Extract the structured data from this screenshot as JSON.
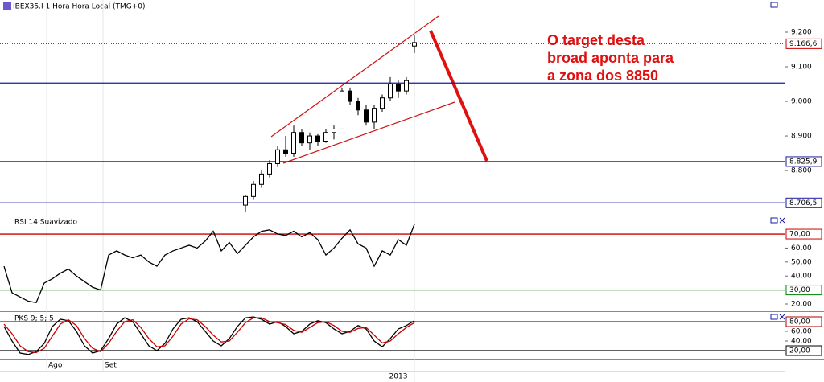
{
  "chart_data": [
    {
      "type": "candlestick",
      "title": "IBEX35.I 1 Hora Hora Local (TMG+0)",
      "annotation": [
        "O target desta",
        "broad aponta para",
        "a zona dos 8850"
      ],
      "categories": [
        null,
        null,
        null,
        null,
        null,
        null,
        "Ago",
        null,
        null,
        null,
        null,
        null,
        null,
        "Set",
        null,
        null,
        null,
        null,
        null,
        null,
        null,
        null,
        null,
        null,
        null,
        null,
        null,
        null,
        null,
        null,
        null,
        null,
        null,
        null,
        null,
        null,
        null,
        null,
        null,
        null,
        null,
        null,
        null,
        null,
        null,
        null,
        null,
        null,
        null,
        null,
        null,
        null
      ],
      "categories_year": [
        null,
        null,
        null,
        null,
        null,
        null,
        null,
        null,
        null,
        null,
        null,
        null,
        null,
        null,
        null,
        null,
        null,
        null,
        null,
        null,
        null,
        null,
        null,
        null,
        null,
        null,
        null,
        null,
        null,
        null,
        null,
        null,
        null,
        null,
        null,
        null,
        null,
        null,
        null,
        null,
        null,
        null,
        null,
        null,
        null,
        null,
        null,
        null,
        null,
        "2013",
        null,
        null
      ],
      "open": [
        null,
        null,
        null,
        null,
        null,
        null,
        null,
        null,
        null,
        null,
        null,
        null,
        null,
        null,
        null,
        null,
        null,
        null,
        null,
        null,
        null,
        null,
        null,
        null,
        null,
        null,
        null,
        null,
        null,
        null,
        8700,
        8725,
        8760,
        8790,
        8820,
        8860,
        8850,
        8910,
        8880,
        8900,
        8885,
        8910,
        8920,
        9030,
        9000,
        8975,
        8940,
        8980,
        9010,
        9050,
        9030,
        9160
      ],
      "high": [
        null,
        null,
        null,
        null,
        null,
        null,
        null,
        null,
        null,
        null,
        null,
        null,
        null,
        null,
        null,
        null,
        null,
        null,
        null,
        null,
        null,
        null,
        null,
        null,
        null,
        null,
        null,
        null,
        null,
        null,
        8730,
        8770,
        8800,
        8830,
        8870,
        8900,
        8930,
        8920,
        8910,
        8905,
        8920,
        8930,
        9040,
        9040,
        9010,
        8990,
        8990,
        9020,
        9070,
        9060,
        9070,
        9190
      ],
      "low": [
        null,
        null,
        null,
        null,
        null,
        null,
        null,
        null,
        null,
        null,
        null,
        null,
        null,
        null,
        null,
        null,
        null,
        null,
        null,
        null,
        null,
        null,
        null,
        null,
        null,
        null,
        null,
        null,
        null,
        null,
        8680,
        8715,
        8750,
        8780,
        8810,
        8840,
        8840,
        8870,
        8860,
        8870,
        8880,
        8890,
        8920,
        8990,
        8960,
        8930,
        8920,
        8970,
        9000,
        9010,
        9020,
        9140
      ],
      "close": [
        null,
        null,
        null,
        null,
        null,
        null,
        null,
        null,
        null,
        null,
        null,
        null,
        null,
        null,
        null,
        null,
        null,
        null,
        null,
        null,
        null,
        null,
        null,
        null,
        null,
        null,
        null,
        null,
        null,
        null,
        8725,
        8760,
        8790,
        8820,
        8860,
        8850,
        8910,
        8880,
        8900,
        8885,
        8910,
        8920,
        9030,
        9000,
        8975,
        8940,
        8980,
        9010,
        9050,
        9030,
        9060,
        9170
      ],
      "color": "#000000",
      "ylim": [
        8670,
        9293
      ],
      "yticks": [
        {
          "value": 9200,
          "label": "9.200"
        },
        {
          "value": 9100,
          "label": "9.100"
        },
        {
          "value": 9000,
          "label": "9.000"
        },
        {
          "value": 8900,
          "label": "8.900"
        },
        {
          "value": 8800,
          "label": "8.800"
        }
      ],
      "levels": [
        {
          "value": 9166.6,
          "label": "9.166,6",
          "color": "#cc0000",
          "dashed": true
        },
        {
          "value": 9053,
          "color": "#1a1aa0"
        },
        {
          "value": 8825.9,
          "label": "8.825,9",
          "color": "#1a1aa0"
        },
        {
          "value": 8706.5,
          "label": "8.706,5",
          "color": "#1a1aa0"
        }
      ]
    },
    {
      "type": "line",
      "title": "RSI 14 Suavizado",
      "series": [
        {
          "color": "#000000",
          "values": [
            47,
            28,
            25,
            22,
            21,
            35,
            38,
            42,
            45,
            40,
            36,
            32,
            30,
            55,
            58,
            55,
            53,
            55,
            50,
            47,
            55,
            58,
            60,
            62,
            60,
            65,
            72,
            58,
            64,
            56,
            62,
            68,
            72,
            73,
            70,
            69,
            72,
            68,
            71,
            66,
            55,
            60,
            67,
            73,
            63,
            60,
            47,
            58,
            55,
            66,
            62,
            77
          ]
        }
      ],
      "ylim": [
        15.4,
        82.1
      ],
      "yticks": [
        {
          "value": 60,
          "label": "60,00"
        },
        {
          "value": 50,
          "label": "50,00"
        },
        {
          "value": 40,
          "label": "40,00"
        },
        {
          "value": 20,
          "label": "20,00"
        }
      ],
      "levels": [
        {
          "value": 70,
          "label": "70,00",
          "color": "#cc0000"
        },
        {
          "value": 30,
          "label": "30,00",
          "color": "#008000"
        }
      ]
    },
    {
      "type": "line",
      "title": "PKS 9; 5; 5",
      "series": [
        {
          "color": "#000000",
          "values": [
            70,
            40,
            15,
            12,
            18,
            35,
            70,
            85,
            82,
            60,
            30,
            15,
            20,
            45,
            75,
            88,
            80,
            55,
            30,
            20,
            35,
            65,
            85,
            88,
            80,
            60,
            40,
            30,
            45,
            70,
            88,
            90,
            85,
            75,
            80,
            70,
            55,
            60,
            75,
            82,
            78,
            65,
            55,
            60,
            72,
            65,
            40,
            28,
            45,
            65,
            72,
            82
          ]
        },
        {
          "color": "#cc0000",
          "values": [
            75,
            55,
            30,
            18,
            16,
            25,
            50,
            75,
            84,
            72,
            45,
            25,
            18,
            35,
            60,
            80,
            84,
            68,
            45,
            28,
            30,
            50,
            75,
            86,
            84,
            70,
            52,
            38,
            40,
            58,
            78,
            88,
            88,
            80,
            78,
            74,
            62,
            58,
            68,
            78,
            80,
            72,
            60,
            58,
            66,
            68,
            52,
            36,
            40,
            55,
            68,
            78
          ]
        }
      ],
      "ylim": [
        1.7,
        98.3
      ],
      "yticks": [
        {
          "value": 60,
          "label": "60,00"
        },
        {
          "value": 40,
          "label": "40,00"
        }
      ],
      "levels": [
        {
          "value": 80,
          "label": "80,00",
          "color": "#b00000"
        },
        {
          "value": 20,
          "label": "20,00",
          "color": "#000000"
        }
      ]
    }
  ]
}
